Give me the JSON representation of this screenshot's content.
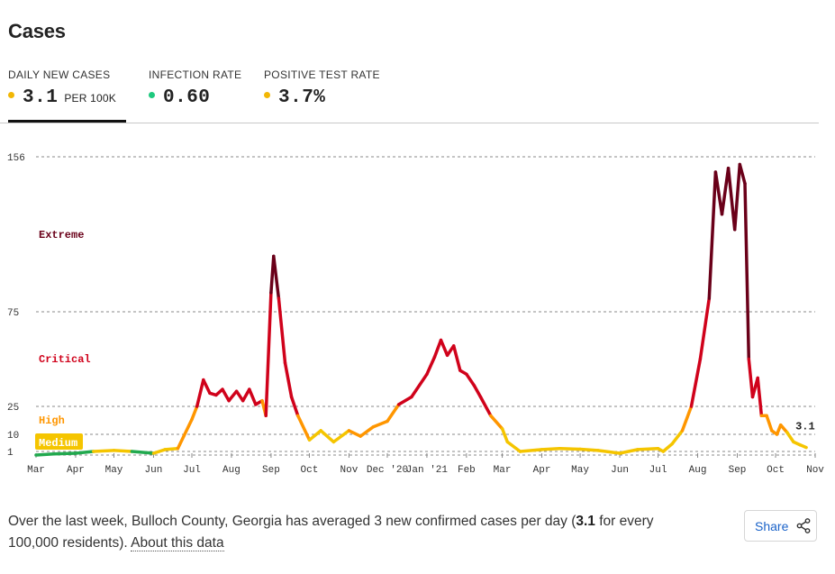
{
  "title": "Cases",
  "metrics": [
    {
      "label": "DAILY NEW CASES",
      "value": "3.1",
      "unit": "PER 100K",
      "color": "#f2b705",
      "active": true
    },
    {
      "label": "INFECTION RATE",
      "value": "0.60",
      "unit": "",
      "color": "#1ec97e",
      "active": false
    },
    {
      "label": "POSITIVE TEST RATE",
      "value": "3.7%",
      "unit": "",
      "color": "#f2b705",
      "active": false
    }
  ],
  "chart_data": {
    "type": "line",
    "ylim": [
      0,
      156
    ],
    "y_ticks": [
      "1",
      "10",
      "25",
      "75",
      "156"
    ],
    "x_ticks": [
      "Mar",
      "Apr",
      "May",
      "Jun",
      "Jul",
      "Aug",
      "Sep",
      "Oct",
      "Nov",
      "Dec '20",
      "Jan '21",
      "Feb",
      "Mar",
      "Apr",
      "May",
      "Jun",
      "Jul",
      "Aug",
      "Sep",
      "Oct",
      "Nov"
    ],
    "grid": true,
    "levels": [
      {
        "name": "Extreme",
        "min": 75,
        "color": "#6a0019"
      },
      {
        "name": "Critical",
        "min": 25,
        "color": "#d0021b"
      },
      {
        "name": "High",
        "min": 10,
        "color": "#ff9600"
      },
      {
        "name": "Medium",
        "min": 1,
        "color": "#f5c500"
      }
    ],
    "series": [
      {
        "x": [
          "2020-03-01",
          "2020-03-15",
          "2020-04-01",
          "2020-04-15",
          "2020-05-01",
          "2020-05-15",
          "2020-06-01",
          "2020-06-10",
          "2020-06-20",
          "2020-07-01",
          "2020-07-05",
          "2020-07-10",
          "2020-07-15",
          "2020-07-20",
          "2020-07-25",
          "2020-07-30",
          "2020-08-05",
          "2020-08-10",
          "2020-08-15",
          "2020-08-20",
          "2020-08-25",
          "2020-08-28",
          "2020-09-01",
          "2020-09-03",
          "2020-09-07",
          "2020-09-12",
          "2020-09-17",
          "2020-09-22",
          "2020-10-01",
          "2020-10-10",
          "2020-10-20",
          "2020-11-01",
          "2020-11-10",
          "2020-11-20",
          "2020-12-01",
          "2020-12-10",
          "2020-12-20",
          "2021-01-01",
          "2021-01-07",
          "2021-01-12",
          "2021-01-17",
          "2021-01-22",
          "2021-01-27",
          "2021-02-01",
          "2021-02-07",
          "2021-02-12",
          "2021-02-20",
          "2021-03-01",
          "2021-03-05",
          "2021-03-15",
          "2021-04-01",
          "2021-04-15",
          "2021-05-01",
          "2021-05-15",
          "2021-06-01",
          "2021-06-15",
          "2021-07-01",
          "2021-07-05",
          "2021-07-12",
          "2021-07-20",
          "2021-07-27",
          "2021-08-03",
          "2021-08-10",
          "2021-08-15",
          "2021-08-20",
          "2021-08-25",
          "2021-08-30",
          "2021-09-03",
          "2021-09-07",
          "2021-09-10",
          "2021-09-13",
          "2021-09-17",
          "2021-09-20",
          "2021-09-24",
          "2021-09-28",
          "2021-10-02",
          "2021-10-05",
          "2021-10-10",
          "2021-10-15",
          "2021-10-20",
          "2021-10-25"
        ],
        "values": [
          0,
          0.3,
          0.5,
          1,
          1.5,
          1,
          0.5,
          2,
          2.5,
          18,
          25,
          39,
          32,
          31,
          34,
          28,
          33,
          28,
          34,
          26,
          28,
          20,
          85,
          104,
          82,
          48,
          30,
          20,
          7,
          12,
          6,
          12,
          9,
          14,
          17,
          26,
          30,
          42,
          51,
          60,
          52,
          57,
          44,
          42,
          36,
          30,
          20,
          13,
          6,
          1,
          2,
          2.5,
          2.2,
          1.5,
          0.5,
          2,
          2.5,
          1,
          5,
          12,
          25,
          50,
          82,
          148,
          126,
          150,
          118,
          152,
          142,
          50,
          30,
          40,
          20,
          20,
          12,
          10,
          15,
          11,
          6,
          4.5,
          3.1
        ]
      }
    ],
    "latest_label": "3.1"
  },
  "footer": {
    "text_before": "Over the last week, Bulloch County, Georgia has averaged 3 new confirmed cases per day (",
    "value": "3.1",
    "text_after": " for every 100,000 residents).",
    "link": "About this data"
  },
  "share": {
    "label": "Share",
    "icon": "share-icon"
  }
}
